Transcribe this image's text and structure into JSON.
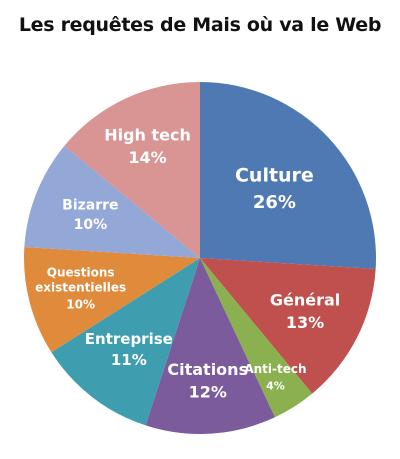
{
  "chart_data": {
    "type": "pie",
    "title": "Les requêtes de Mais où va le Web",
    "slices": [
      {
        "label": "Culture",
        "value": 26,
        "percent_label": "26%",
        "color": "#4f79b2"
      },
      {
        "label": "Général",
        "value": 13,
        "percent_label": "13%",
        "color": "#c0504d"
      },
      {
        "label": "Anti-tech",
        "value": 4,
        "percent_label": "4%",
        "color": "#8ab04f"
      },
      {
        "label": "Citations",
        "value": 12,
        "percent_label": "12%",
        "color": "#7b5b9c"
      },
      {
        "label": "Entreprise",
        "value": 11,
        "percent_label": "11%",
        "color": "#3f9db0"
      },
      {
        "label": "Questions existentielles",
        "value": 10,
        "percent_label": "10%",
        "color": "#e08a3c"
      },
      {
        "label": "Bizarre",
        "value": 10,
        "percent_label": "10%",
        "color": "#93a8d6"
      },
      {
        "label": "High tech",
        "value": 14,
        "percent_label": "14%",
        "color": "#d99594"
      }
    ]
  }
}
